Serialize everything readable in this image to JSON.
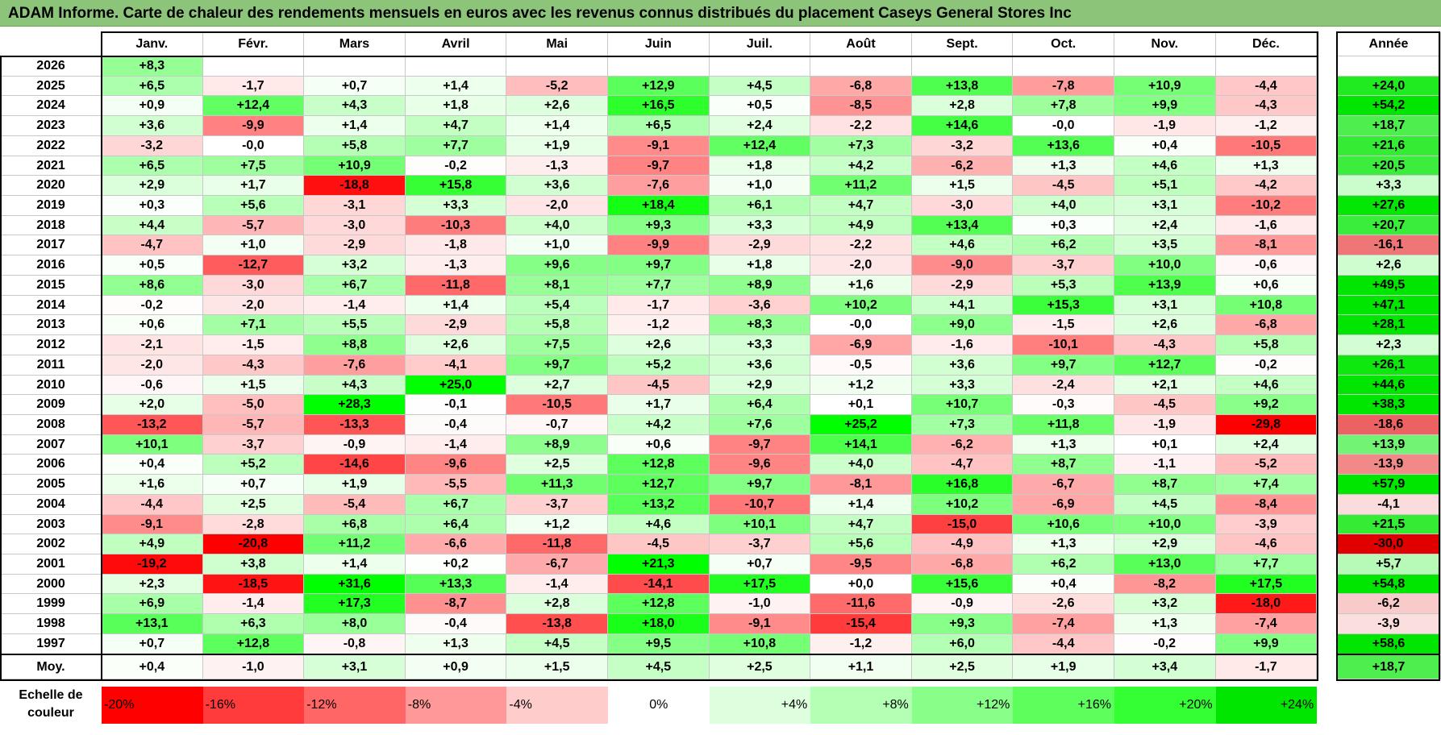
{
  "title": "ADAM Informe. Carte de chaleur des rendements mensuels en euros avec les revenus connus distribués du placement Caseys General Stores Inc",
  "chart_data": {
    "type": "heatmap",
    "title": "ADAM Informe. Carte de chaleur des rendements mensuels en euros avec les revenus connus distribués du placement Caseys General Stores Inc",
    "columns": [
      "Janv.",
      "Févr.",
      "Mars",
      "Avril",
      "Mai",
      "Juin",
      "Juil.",
      "Août",
      "Sept.",
      "Oct.",
      "Nov.",
      "Déc."
    ],
    "annual_header": "Année",
    "rows": [
      {
        "year": "2026",
        "values": [
          "+8,3",
          "",
          "",
          "",
          "",
          "",
          "",
          "",
          "",
          "",
          "",
          ""
        ],
        "annual": ""
      },
      {
        "year": "2025",
        "values": [
          "+6,5",
          "-1,7",
          "+0,7",
          "+1,4",
          "-5,2",
          "+12,9",
          "+4,5",
          "-6,8",
          "+13,8",
          "-7,8",
          "+10,9",
          "-4,4"
        ],
        "annual": "+24,0"
      },
      {
        "year": "2024",
        "values": [
          "+0,9",
          "+12,4",
          "+4,3",
          "+1,8",
          "+2,6",
          "+16,5",
          "+0,5",
          "-8,5",
          "+2,8",
          "+7,8",
          "+9,9",
          "-4,3"
        ],
        "annual": "+54,2"
      },
      {
        "year": "2023",
        "values": [
          "+3,6",
          "-9,9",
          "+1,4",
          "+4,7",
          "+1,4",
          "+6,5",
          "+2,4",
          "-2,2",
          "+14,6",
          "-0,0",
          "-1,9",
          "-1,2"
        ],
        "annual": "+18,7"
      },
      {
        "year": "2022",
        "values": [
          "-3,2",
          "-0,0",
          "+5,8",
          "+7,7",
          "+1,9",
          "-9,1",
          "+12,4",
          "+7,3",
          "-3,2",
          "+13,6",
          "+0,4",
          "-10,5"
        ],
        "annual": "+21,6"
      },
      {
        "year": "2021",
        "values": [
          "+6,5",
          "+7,5",
          "+10,9",
          "-0,2",
          "-1,3",
          "-9,7",
          "+1,8",
          "+4,2",
          "-6,2",
          "+1,3",
          "+4,6",
          "+1,3"
        ],
        "annual": "+20,5"
      },
      {
        "year": "2020",
        "values": [
          "+2,9",
          "+1,7",
          "-18,8",
          "+15,8",
          "+3,6",
          "-7,6",
          "+1,0",
          "+11,2",
          "+1,5",
          "-4,5",
          "+5,1",
          "-4,2"
        ],
        "annual": "+3,3"
      },
      {
        "year": "2019",
        "values": [
          "+0,3",
          "+5,6",
          "-3,1",
          "+3,3",
          "-2,0",
          "+18,4",
          "+6,1",
          "+4,7",
          "-3,0",
          "+4,0",
          "+3,1",
          "-10,2"
        ],
        "annual": "+27,6"
      },
      {
        "year": "2018",
        "values": [
          "+4,4",
          "-5,7",
          "-3,0",
          "-10,3",
          "+4,0",
          "+9,3",
          "+3,3",
          "+4,9",
          "+13,4",
          "+0,3",
          "+2,4",
          "-1,6"
        ],
        "annual": "+20,7"
      },
      {
        "year": "2017",
        "values": [
          "-4,7",
          "+1,0",
          "-2,9",
          "-1,8",
          "+1,0",
          "-9,9",
          "-2,9",
          "-2,2",
          "+4,6",
          "+6,2",
          "+3,5",
          "-8,1"
        ],
        "annual": "-16,1"
      },
      {
        "year": "2016",
        "values": [
          "+0,5",
          "-12,7",
          "+3,2",
          "-1,3",
          "+9,6",
          "+9,7",
          "+1,8",
          "-2,0",
          "-9,0",
          "-3,7",
          "+10,0",
          "-0,6"
        ],
        "annual": "+2,6"
      },
      {
        "year": "2015",
        "values": [
          "+8,6",
          "-3,0",
          "+6,7",
          "-11,8",
          "+8,1",
          "+7,7",
          "+8,9",
          "+1,6",
          "-2,9",
          "+5,3",
          "+13,9",
          "+0,6"
        ],
        "annual": "+49,5"
      },
      {
        "year": "2014",
        "values": [
          "-0,2",
          "-2,0",
          "-1,4",
          "+1,4",
          "+5,4",
          "-1,7",
          "-3,6",
          "+10,2",
          "+4,1",
          "+15,3",
          "+3,1",
          "+10,8"
        ],
        "annual": "+47,1"
      },
      {
        "year": "2013",
        "values": [
          "+0,6",
          "+7,1",
          "+5,5",
          "-2,9",
          "+5,8",
          "-1,2",
          "+8,3",
          "-0,0",
          "+9,0",
          "-1,5",
          "+2,6",
          "-6,8"
        ],
        "annual": "+28,1"
      },
      {
        "year": "2012",
        "values": [
          "-2,1",
          "-1,5",
          "+8,8",
          "+2,6",
          "+7,5",
          "+2,6",
          "+3,3",
          "-6,9",
          "-1,6",
          "-10,1",
          "-4,3",
          "+5,8"
        ],
        "annual": "+2,3"
      },
      {
        "year": "2011",
        "values": [
          "-2,0",
          "-4,3",
          "-7,6",
          "-4,1",
          "+9,7",
          "+5,2",
          "+3,6",
          "-0,5",
          "+3,6",
          "+9,7",
          "+12,7",
          "-0,2"
        ],
        "annual": "+26,1"
      },
      {
        "year": "2010",
        "values": [
          "-0,6",
          "+1,5",
          "+4,3",
          "+25,0",
          "+2,7",
          "-4,5",
          "+2,9",
          "+1,2",
          "+3,3",
          "-2,4",
          "+2,1",
          "+4,6"
        ],
        "annual": "+44,6"
      },
      {
        "year": "2009",
        "values": [
          "+2,0",
          "-5,0",
          "+28,3",
          "-0,1",
          "-10,5",
          "+1,7",
          "+6,4",
          "+0,1",
          "+10,7",
          "-0,3",
          "-4,5",
          "+9,2"
        ],
        "annual": "+38,3"
      },
      {
        "year": "2008",
        "values": [
          "-13,2",
          "-5,7",
          "-13,3",
          "-0,4",
          "-0,7",
          "+4,2",
          "+7,6",
          "+25,2",
          "+7,3",
          "+11,8",
          "-1,9",
          "-29,8"
        ],
        "annual": "-18,6"
      },
      {
        "year": "2007",
        "values": [
          "+10,1",
          "-3,7",
          "-0,9",
          "-1,4",
          "+8,9",
          "+0,6",
          "-9,7",
          "+14,1",
          "-6,2",
          "+1,3",
          "+0,1",
          "+2,4"
        ],
        "annual": "+13,9"
      },
      {
        "year": "2006",
        "values": [
          "+0,4",
          "+5,2",
          "-14,6",
          "-9,6",
          "+2,5",
          "+12,8",
          "-9,6",
          "+4,0",
          "-4,7",
          "+8,7",
          "-1,1",
          "-5,2"
        ],
        "annual": "-13,9"
      },
      {
        "year": "2005",
        "values": [
          "+1,6",
          "+0,7",
          "+1,9",
          "-5,5",
          "+11,3",
          "+12,7",
          "+9,7",
          "-8,1",
          "+16,8",
          "-6,7",
          "+8,7",
          "+7,4"
        ],
        "annual": "+57,9"
      },
      {
        "year": "2004",
        "values": [
          "-4,4",
          "+2,5",
          "-5,4",
          "+6,7",
          "-3,7",
          "+13,2",
          "-10,7",
          "+1,4",
          "+10,2",
          "-6,9",
          "+4,5",
          "-8,4"
        ],
        "annual": "-4,1"
      },
      {
        "year": "2003",
        "values": [
          "-9,1",
          "-2,8",
          "+6,8",
          "+6,4",
          "+1,2",
          "+4,6",
          "+10,1",
          "+4,7",
          "-15,0",
          "+10,6",
          "+10,0",
          "-3,9"
        ],
        "annual": "+21,5"
      },
      {
        "year": "2002",
        "values": [
          "+4,9",
          "-20,8",
          "+11,2",
          "-6,6",
          "-11,8",
          "-4,5",
          "-3,7",
          "+5,6",
          "-4,9",
          "+1,3",
          "+2,9",
          "-4,6"
        ],
        "annual": "-30,0"
      },
      {
        "year": "2001",
        "values": [
          "-19,2",
          "+3,8",
          "+1,4",
          "+0,2",
          "-6,7",
          "+21,3",
          "+0,7",
          "-9,5",
          "-6,8",
          "+6,2",
          "+13,0",
          "+7,7"
        ],
        "annual": "+5,7"
      },
      {
        "year": "2000",
        "values": [
          "+2,3",
          "-18,5",
          "+31,6",
          "+13,3",
          "-1,4",
          "-14,1",
          "+17,5",
          "+0,0",
          "+15,6",
          "+0,4",
          "-8,2",
          "+17,5"
        ],
        "annual": "+54,8"
      },
      {
        "year": "1999",
        "values": [
          "+6,9",
          "-1,4",
          "+17,3",
          "-8,7",
          "+2,8",
          "+12,8",
          "-1,0",
          "-11,6",
          "-0,9",
          "-2,6",
          "+3,2",
          "-18,0"
        ],
        "annual": "-6,2"
      },
      {
        "year": "1998",
        "values": [
          "+13,1",
          "+6,3",
          "+8,0",
          "-0,4",
          "-13,8",
          "+18,0",
          "-9,1",
          "-15,4",
          "+9,3",
          "-7,4",
          "+1,3",
          "-7,4"
        ],
        "annual": "-3,9"
      },
      {
        "year": "1997",
        "values": [
          "+0,7",
          "+12,8",
          "-0,8",
          "+1,3",
          "+4,5",
          "+9,5",
          "+10,8",
          "-1,2",
          "+6,0",
          "-4,4",
          "-0,2",
          "+9,9"
        ],
        "annual": "+58,6"
      }
    ],
    "average": {
      "label": "Moy.",
      "values": [
        "+0,4",
        "-1,0",
        "+3,1",
        "+0,9",
        "+1,5",
        "+4,5",
        "+2,5",
        "+1,1",
        "+2,5",
        "+1,9",
        "+3,4",
        "-1,7"
      ],
      "annual": "+18,7"
    },
    "scale": {
      "label": "Echelle de couleur",
      "stops": [
        "-20%",
        "-16%",
        "-12%",
        "-8%",
        "-4%",
        "0%",
        "+4%",
        "+8%",
        "+12%",
        "+16%",
        "+20%",
        "+24%"
      ],
      "stop_values": [
        -20,
        -16,
        -12,
        -8,
        -4,
        0,
        4,
        8,
        12,
        16,
        20,
        24
      ],
      "colors": [
        "#ff0000",
        "#ff3b3b",
        "#ff6666",
        "#ff9999",
        "#ffcccc",
        "#ffffff",
        "#ddffdd",
        "#b3ffb3",
        "#88ff88",
        "#5cff5c",
        "#33ff33",
        "#00e600"
      ]
    }
  }
}
